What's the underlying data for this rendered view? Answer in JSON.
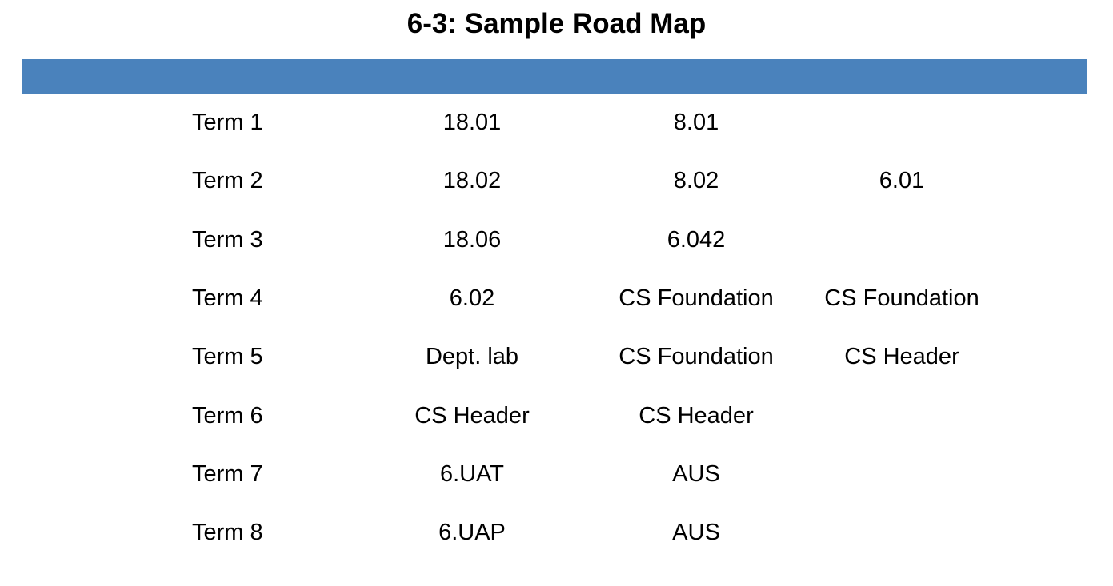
{
  "title": "6-3: Sample Road Map",
  "table": {
    "header_bar_color": "#4a82bc",
    "term_column_header": "",
    "rows": [
      {
        "term": "Term 1",
        "cells": [
          "18.01",
          "8.01",
          ""
        ]
      },
      {
        "term": "Term 2",
        "cells": [
          "18.02",
          "8.02",
          "6.01"
        ]
      },
      {
        "term": "Term 3",
        "cells": [
          "18.06",
          "6.042",
          ""
        ]
      },
      {
        "term": "Term 4",
        "cells": [
          "6.02",
          "CS Foundation",
          "CS Foundation"
        ]
      },
      {
        "term": "Term 5",
        "cells": [
          "Dept. lab",
          "CS Foundation",
          "CS Header"
        ]
      },
      {
        "term": "Term 6",
        "cells": [
          "CS Header",
          "CS Header",
          ""
        ]
      },
      {
        "term": "Term 7",
        "cells": [
          "6.UAT",
          "AUS",
          ""
        ]
      },
      {
        "term": "Term 8",
        "cells": [
          "6.UAP",
          "AUS",
          ""
        ]
      }
    ]
  }
}
